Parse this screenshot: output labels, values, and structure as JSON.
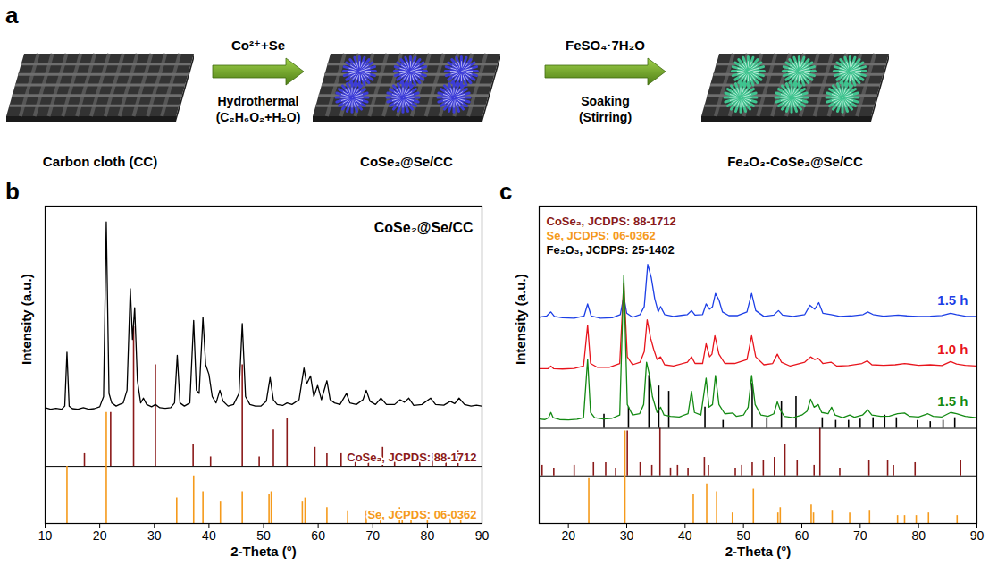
{
  "diagram": {
    "panel": "a",
    "steps": [
      "Carbon cloth (CC)",
      "CoSe₂@Se/CC",
      "Fe₂O₃-CoSe₂@Se/CC"
    ],
    "arrows": [
      {
        "above": "Co²⁺+Se",
        "below": [
          "Hydrothermal",
          "(C₂H₆O₂+H₂O)"
        ]
      },
      {
        "above": "FeSO₄·7H₂O",
        "below": [
          "Soaking",
          "(Stirring)"
        ]
      }
    ]
  },
  "chart_data": [
    {
      "panel": "b",
      "type": "line",
      "xlabel": "2-Theta (°)",
      "ylabel": "Intensity (a.u.)",
      "xlim": [
        10,
        90
      ],
      "xticks": [
        10,
        20,
        30,
        40,
        50,
        60,
        70,
        80,
        90
      ],
      "ylim": [
        0,
        100
      ],
      "tick_labels": "x",
      "legend": "right",
      "series": [
        {
          "name": "CoSe₂@Se/CC",
          "color": "#000000",
          "x": [
            10,
            11,
            12,
            13,
            13.6,
            14,
            14.4,
            15,
            16,
            17,
            18,
            19,
            20,
            20.7,
            21.2,
            21.7,
            22.2,
            23,
            23.6,
            24.3,
            25,
            25.6,
            26,
            26.4,
            26.9,
            27.5,
            28,
            28.6,
            29.5,
            30.2,
            31,
            32,
            33,
            33.7,
            34.2,
            34.7,
            35.5,
            36.5,
            37.2,
            37.7,
            38.2,
            38.9,
            39.4,
            40,
            40.6,
            41.3,
            42,
            42.6,
            43.5,
            44.5,
            45.5,
            46.1,
            46.7,
            47.5,
            48.5,
            49.5,
            50.5,
            51.2,
            51.8,
            52.5,
            53.5,
            54.3,
            55.2,
            56.5,
            57.4,
            57.9,
            58.6,
            59.2,
            59.9,
            60.6,
            61.6,
            62.2,
            63,
            64,
            65.2,
            65.8,
            67,
            68.2,
            68.8,
            69.5,
            70.5,
            71.5,
            72.5,
            74,
            75,
            75.8,
            76.6,
            77.5,
            79,
            80.6,
            81.5,
            83,
            84.2,
            85,
            85.8,
            86.8,
            88,
            89,
            90
          ],
          "values": [
            36.5,
            36,
            36.3,
            36,
            37,
            54,
            37,
            36.2,
            36,
            36.5,
            36,
            36.2,
            36.8,
            40,
            95,
            41,
            38,
            37,
            37.5,
            38,
            42,
            74,
            58,
            68,
            45,
            38,
            39.5,
            37.5,
            36.8,
            37.5,
            36.5,
            36.3,
            36.5,
            38,
            53,
            38,
            37,
            38,
            64,
            42,
            41,
            65,
            50,
            47,
            40,
            38,
            42,
            38.5,
            37,
            37.5,
            41,
            63,
            40,
            37.5,
            37,
            37,
            38.5,
            46,
            39,
            37.5,
            37.2,
            38,
            37.5,
            39,
            49,
            44,
            46.5,
            40,
            43.5,
            39,
            45,
            39,
            38,
            37.5,
            41,
            38,
            37.5,
            39,
            42,
            38.5,
            37.5,
            39.5,
            37.5,
            37.5,
            39,
            38.2,
            39.5,
            37.2,
            37.5,
            39.5,
            37.5,
            37.3,
            38.5,
            37.8,
            39.5,
            37.5,
            37,
            37.3,
            37
          ]
        },
        {
          "name": "CoSe₂, JCPDS: 88-1712",
          "type": "stick",
          "color": "#8b1a1a",
          "baseline": 18,
          "x": [
            17.2,
            22,
            26.2,
            30.2,
            37.1,
            40.3,
            46.1,
            49.2,
            51.8,
            54.3,
            59.4,
            61.6,
            64.2,
            66.8,
            69.2,
            71.8,
            74,
            78.6,
            80.9,
            83.4,
            85.6
          ],
          "values": [
            22,
            35,
            62,
            50,
            25,
            21,
            50,
            21,
            29.5,
            33,
            24,
            22,
            22,
            21,
            22,
            24,
            22,
            21,
            22,
            21,
            23
          ]
        },
        {
          "name": "Se, JCPDS: 06-0362",
          "type": "stick",
          "color": "#f59a1b",
          "baseline": 0,
          "x": [
            14,
            21.2,
            34.1,
            37.2,
            38.9,
            42.1,
            46.1,
            51,
            51.4,
            57.1,
            57.6,
            61.6,
            65.4,
            68.8,
            71.4,
            74.9,
            75.4,
            77,
            80,
            84.2,
            86.1
          ],
          "values": [
            18,
            35,
            8,
            15,
            10,
            7,
            10,
            9,
            10,
            7,
            8,
            5,
            4,
            4,
            3,
            5,
            4,
            3,
            3,
            3,
            4
          ]
        }
      ]
    },
    {
      "panel": "c",
      "type": "line",
      "xlabel": "2-Theta (°)",
      "ylabel": "Intensity (a.u.)",
      "xlim": [
        15,
        90
      ],
      "xticks": [
        20,
        30,
        40,
        50,
        60,
        70,
        80,
        90
      ],
      "ylim": [
        0,
        120
      ],
      "tick_labels": "x",
      "legend": "top-left",
      "series": [
        {
          "name": "1.5 h",
          "color": "#1c3fe6",
          "x": [
            15,
            16.3,
            17,
            17.6,
            19,
            21,
            22.7,
            23.3,
            23.9,
            25.5,
            27.5,
            28.9,
            29.5,
            30,
            31,
            32.3,
            33,
            33.6,
            34.2,
            34.8,
            35.4,
            35.8,
            36.5,
            38,
            40.4,
            41.1,
            41.7,
            43,
            43.6,
            44.2,
            44.7,
            45.2,
            45.8,
            46.4,
            47.5,
            49,
            50.6,
            51.4,
            52.1,
            53.5,
            55.2,
            56,
            56.7,
            58.5,
            60.5,
            61.4,
            62.2,
            62.9,
            63.6,
            65,
            66.5,
            68.5,
            70.5,
            71.3,
            72.2,
            74,
            76.5,
            78,
            80,
            82,
            84,
            85.5,
            86.5,
            88,
            90
          ],
          "values": [
            78,
            78.5,
            80,
            78.3,
            77.8,
            77.6,
            78.5,
            83,
            78.5,
            77.6,
            77.8,
            79,
            86,
            79.5,
            78,
            79,
            82,
            98,
            93,
            85,
            80,
            82,
            79,
            78.3,
            79,
            80.5,
            78.8,
            79,
            83,
            81,
            82,
            87,
            84.5,
            80,
            78.6,
            78.6,
            80,
            87,
            80.5,
            78.3,
            78.8,
            80.5,
            78.8,
            78.3,
            79,
            82.5,
            81,
            83.5,
            79.5,
            79,
            78.3,
            78.5,
            79,
            80,
            79,
            78.4,
            78.8,
            78.5,
            78.3,
            78.4,
            78.6,
            79.5,
            79,
            78.4,
            78.3
          ]
        },
        {
          "name": "1.0 h",
          "color": "#e8141c",
          "x": [
            15,
            16.5,
            17,
            17.5,
            19,
            21,
            22.6,
            23.3,
            23.8,
            25,
            27,
            28.8,
            29.5,
            30.1,
            31,
            32.3,
            33,
            33.5,
            34.1,
            34.6,
            35.2,
            35.8,
            36.5,
            38,
            40.4,
            41.1,
            41.7,
            43,
            43.6,
            44.2,
            44.6,
            45.1,
            45.8,
            46.8,
            48.5,
            50.6,
            51.4,
            52.1,
            53.5,
            55,
            55.8,
            56.5,
            58,
            60.5,
            61.5,
            62.2,
            62.8,
            63.6,
            65,
            66,
            68,
            70.3,
            71.2,
            72,
            74,
            76,
            77.6,
            80,
            82,
            84,
            85.5,
            86.5,
            88,
            90
          ],
          "values": [
            58.5,
            58.5,
            59.5,
            58.5,
            58.4,
            58.6,
            59.5,
            75,
            60.5,
            59,
            59,
            60.5,
            91,
            63,
            60,
            61,
            65,
            77,
            70,
            66,
            62,
            63,
            60,
            59.5,
            61,
            63,
            60.5,
            60.5,
            68,
            63,
            64,
            71,
            64,
            60.5,
            60.5,
            62,
            71,
            63,
            60,
            60.5,
            64,
            61,
            59.5,
            61,
            63,
            62,
            62.5,
            60.5,
            61,
            59.5,
            59.7,
            60.5,
            61.5,
            60,
            59.8,
            60,
            60.5,
            59.8,
            60,
            59.7,
            61.2,
            60.3,
            59.8,
            59.5
          ]
        },
        {
          "name": "1.5 h",
          "color": "#138a13",
          "x": [
            15,
            16,
            16.6,
            17,
            17.4,
            18.5,
            20,
            21.5,
            22.6,
            23.3,
            23.8,
            24.5,
            26,
            27.5,
            28.8,
            29.5,
            30.1,
            31,
            32.2,
            32.9,
            33.4,
            33.9,
            34.4,
            35.2,
            35.8,
            36.4,
            37.5,
            39,
            40.5,
            41.1,
            41.6,
            42.7,
            43.6,
            44.1,
            44.7,
            45.2,
            45.8,
            46.8,
            48.2,
            48.8,
            50,
            50.8,
            51.4,
            52,
            53,
            54.2,
            55.2,
            55.8,
            56.3,
            57,
            58.5,
            60,
            60.9,
            61.5,
            62.1,
            62.8,
            63.4,
            64.5,
            65.1,
            65.7,
            67,
            68.2,
            69,
            70.4,
            71.3,
            72,
            73.5,
            75,
            76.4,
            77.6,
            78.5,
            80,
            81.6,
            82.5,
            84,
            85.5,
            86.5,
            88,
            90
          ],
          "values": [
            39.5,
            39.3,
            40,
            42,
            40,
            39.3,
            39.2,
            39.4,
            40,
            62,
            42,
            40,
            39.5,
            39.8,
            41,
            94,
            45,
            41,
            41.5,
            45,
            61,
            56,
            48,
            42,
            44,
            41,
            40.5,
            40.3,
            41.5,
            50,
            42,
            41,
            55,
            44,
            45,
            56,
            45,
            41.5,
            41.8,
            40.5,
            41,
            44,
            56,
            45,
            41,
            40.5,
            41.5,
            46,
            43,
            40.5,
            40,
            41,
            42.5,
            47,
            44,
            45,
            42,
            41.5,
            44,
            41,
            40,
            41,
            40.2,
            41,
            43,
            41,
            40.5,
            40.6,
            41.5,
            41.8,
            40.5,
            40.3,
            41.5,
            40.5,
            40.3,
            42,
            41.5,
            40.5,
            40
          ]
        },
        {
          "name": "CoSe₂, JCDPS: 88-1712",
          "type": "stick",
          "color": "#8b1a1a",
          "baseline": 18,
          "x": [
            15.5,
            17.5,
            21,
            24.3,
            26.4,
            28.1,
            30.1,
            32.3,
            34.3,
            35.7,
            37.5,
            38.7,
            40.5,
            43.3,
            44,
            48.6,
            49.7,
            51.5,
            53.4,
            55.3,
            57.1,
            59.2,
            62.1,
            63.1,
            66.5,
            71.5,
            74.7,
            75.7,
            79.4,
            87.2
          ],
          "values": [
            22,
            21,
            22,
            23,
            23,
            21,
            35,
            23,
            22,
            36,
            21,
            22,
            21,
            25,
            22,
            21,
            22,
            23,
            24,
            25,
            30,
            24,
            22,
            36,
            21,
            24,
            24,
            22,
            23,
            24
          ]
        },
        {
          "name": "Se, JCDPS: 06-0362",
          "type": "stick",
          "color": "#f59a1b",
          "baseline": 0,
          "x": [
            23.5,
            29.7,
            41.4,
            43.7,
            45.4,
            48.1,
            51.7,
            55.9,
            56.3,
            61.6,
            62,
            65.2,
            68.2,
            71.6,
            76.4,
            77.6,
            79.6,
            81.7,
            86.6
          ],
          "values": [
            17,
            35,
            11,
            15,
            12,
            4,
            13,
            4,
            6,
            7,
            4,
            5,
            4,
            5,
            3,
            3,
            3,
            4,
            3
          ]
        },
        {
          "name": "Fe₂O₃, JCDPS: 25-1402",
          "type": "stick",
          "color": "#000000",
          "baseline": 36,
          "x": [
            26.1,
            30.3,
            33.8,
            35.5,
            37.2,
            43.4,
            46.5,
            51.5,
            54,
            56.5,
            59,
            63.5,
            65.8,
            68,
            70,
            72.2,
            74.2,
            76.2,
            79.8,
            82,
            84.2,
            86.2
          ],
          "values": [
            41.3,
            44,
            56,
            52,
            50,
            44,
            39,
            53,
            40,
            46,
            48,
            40,
            39,
            39,
            39.5,
            40,
            41,
            40,
            39,
            38.5,
            39,
            40
          ]
        }
      ]
    }
  ]
}
